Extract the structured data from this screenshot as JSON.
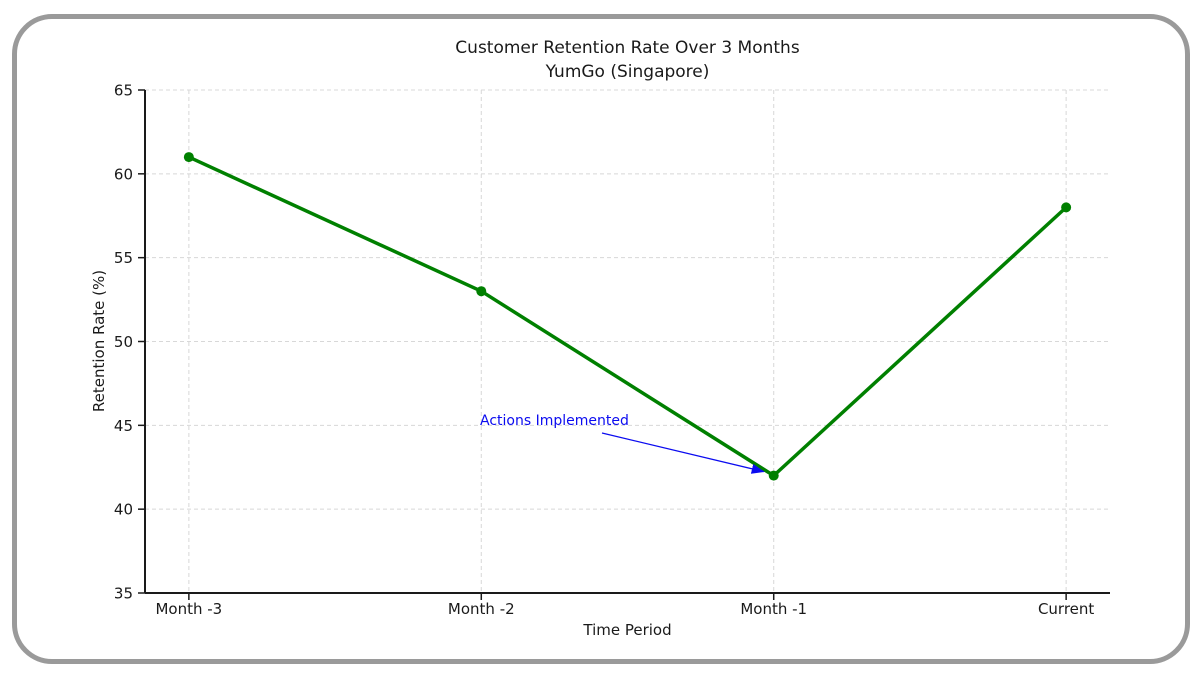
{
  "window": {
    "background": "#ffffff",
    "frame_border_color": "#9a9a9a"
  },
  "chart_data": {
    "type": "line",
    "title": "Customer Retention Rate Over 3 Months",
    "subtitle": "YumGo (Singapore)",
    "xlabel": "Time Period",
    "ylabel": "Retention Rate (%)",
    "categories": [
      "Month -3",
      "Month -2",
      "Month -1",
      "Current"
    ],
    "values": [
      61,
      53,
      42,
      58
    ],
    "ylim": [
      35,
      65
    ],
    "yticks": [
      35,
      40,
      45,
      50,
      55,
      60,
      65
    ],
    "grid": true,
    "grid_style": "dashed",
    "grid_color": "#d8d8d8",
    "legend": "none",
    "line_color": "#008000",
    "marker": "circle",
    "marker_color": "#008000",
    "axis_color": "#1a1a1a",
    "annotation": {
      "text": "Actions Implemented",
      "color": "#0b0bf0",
      "target_category": "Month -1",
      "target_value": 42
    }
  }
}
